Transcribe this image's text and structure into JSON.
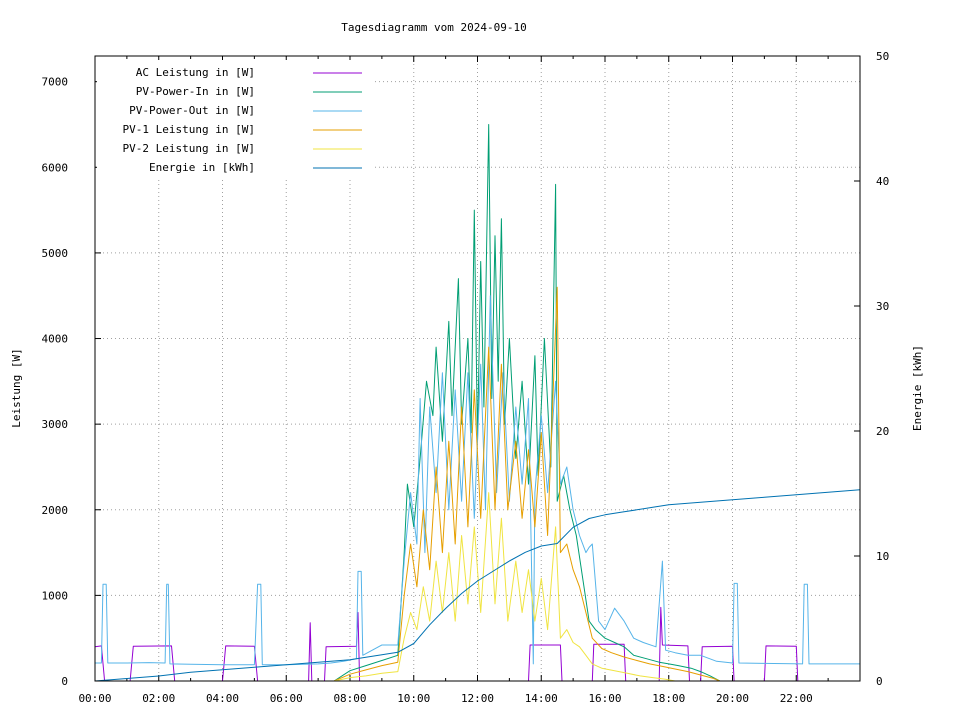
{
  "chart_data": {
    "type": "line",
    "title": "Tagesdiagramm vom 2024-09-10",
    "ylabel": "Leistung [W]",
    "y2label": "Energie [kWh]",
    "xlim": [
      "00:00",
      "24:00"
    ],
    "ylim": [
      0,
      7300
    ],
    "y2lim": [
      0,
      50
    ],
    "x_ticks": [
      "00:00",
      "02:00",
      "04:00",
      "06:00",
      "08:00",
      "10:00",
      "12:00",
      "14:00",
      "16:00",
      "18:00",
      "20:00",
      "22:00"
    ],
    "y_ticks": [
      0,
      1000,
      2000,
      3000,
      4000,
      5000,
      6000,
      7000
    ],
    "y2_ticks": [
      0,
      10,
      20,
      30,
      40,
      50
    ],
    "grid": true,
    "legend_position": "top-left",
    "series": [
      {
        "name": "AC Leistung in [W]",
        "color": "#9400d3",
        "axis": "left",
        "points": [
          [
            0.0,
            400
          ],
          [
            0.2,
            410
          ],
          [
            0.3,
            0
          ],
          [
            1.1,
            0
          ],
          [
            1.2,
            405
          ],
          [
            2.4,
            410
          ],
          [
            2.5,
            0
          ],
          [
            4.0,
            0
          ],
          [
            4.1,
            410
          ],
          [
            5.0,
            405
          ],
          [
            5.1,
            0
          ],
          [
            6.7,
            0
          ],
          [
            6.75,
            680
          ],
          [
            6.8,
            0
          ],
          [
            7.2,
            0
          ],
          [
            7.25,
            400
          ],
          [
            8.2,
            405
          ],
          [
            8.25,
            800
          ],
          [
            8.3,
            0
          ],
          [
            13.6,
            0
          ],
          [
            13.65,
            420
          ],
          [
            14.6,
            420
          ],
          [
            14.65,
            0
          ],
          [
            15.6,
            0
          ],
          [
            15.65,
            430
          ],
          [
            16.6,
            430
          ],
          [
            16.65,
            0
          ],
          [
            17.7,
            0
          ],
          [
            17.75,
            860
          ],
          [
            17.8,
            420
          ],
          [
            18.6,
            410
          ],
          [
            18.65,
            0
          ],
          [
            19.0,
            0
          ],
          [
            19.05,
            400
          ],
          [
            20.0,
            405
          ],
          [
            20.05,
            0
          ],
          [
            21.0,
            0
          ],
          [
            21.05,
            410
          ],
          [
            22.0,
            405
          ],
          [
            22.05,
            0
          ],
          [
            24.0,
            0
          ]
        ]
      },
      {
        "name": "PV-Power-In in [W]",
        "color": "#009e73",
        "axis": "left",
        "points": [
          [
            7.5,
            0
          ],
          [
            8.0,
            120
          ],
          [
            8.5,
            180
          ],
          [
            9.0,
            240
          ],
          [
            9.5,
            300
          ],
          [
            9.7,
            1500
          ],
          [
            9.8,
            2300
          ],
          [
            10.0,
            1800
          ],
          [
            10.2,
            2600
          ],
          [
            10.4,
            3500
          ],
          [
            10.6,
            3100
          ],
          [
            10.7,
            3900
          ],
          [
            10.9,
            2800
          ],
          [
            11.1,
            4200
          ],
          [
            11.2,
            3100
          ],
          [
            11.4,
            4700
          ],
          [
            11.5,
            3000
          ],
          [
            11.7,
            4000
          ],
          [
            11.8,
            2900
          ],
          [
            11.9,
            5500
          ],
          [
            12.0,
            2800
          ],
          [
            12.1,
            4900
          ],
          [
            12.2,
            3200
          ],
          [
            12.35,
            6500
          ],
          [
            12.45,
            3300
          ],
          [
            12.55,
            5200
          ],
          [
            12.65,
            3500
          ],
          [
            12.75,
            5400
          ],
          [
            12.85,
            3000
          ],
          [
            13.0,
            4000
          ],
          [
            13.2,
            2600
          ],
          [
            13.4,
            3500
          ],
          [
            13.6,
            2300
          ],
          [
            13.8,
            3800
          ],
          [
            13.9,
            2400
          ],
          [
            14.1,
            4000
          ],
          [
            14.3,
            2500
          ],
          [
            14.45,
            5800
          ],
          [
            14.5,
            2100
          ],
          [
            14.7,
            2400
          ],
          [
            14.9,
            2000
          ],
          [
            15.1,
            1700
          ],
          [
            15.3,
            1200
          ],
          [
            15.5,
            700
          ],
          [
            15.7,
            600
          ],
          [
            16.0,
            500
          ],
          [
            16.3,
            450
          ],
          [
            16.6,
            400
          ],
          [
            16.9,
            300
          ],
          [
            17.3,
            260
          ],
          [
            17.7,
            220
          ],
          [
            18.0,
            200
          ],
          [
            18.3,
            180
          ],
          [
            18.7,
            150
          ],
          [
            19.0,
            110
          ],
          [
            19.3,
            60
          ],
          [
            19.6,
            0
          ]
        ]
      },
      {
        "name": "PV-Power-Out in [W]",
        "color": "#56b4e9",
        "axis": "left",
        "points": [
          [
            0.0,
            210
          ],
          [
            0.2,
            210
          ],
          [
            0.25,
            1130
          ],
          [
            0.35,
            1130
          ],
          [
            0.4,
            210
          ],
          [
            1.0,
            210
          ],
          [
            1.7,
            215
          ],
          [
            2.2,
            210
          ],
          [
            2.25,
            1130
          ],
          [
            2.3,
            1130
          ],
          [
            2.35,
            200
          ],
          [
            3.0,
            195
          ],
          [
            4.0,
            190
          ],
          [
            5.0,
            190
          ],
          [
            5.1,
            1130
          ],
          [
            5.2,
            1130
          ],
          [
            5.25,
            190
          ],
          [
            6.0,
            190
          ],
          [
            7.0,
            200
          ],
          [
            7.4,
            210
          ],
          [
            7.8,
            230
          ],
          [
            8.2,
            260
          ],
          [
            8.25,
            1280
          ],
          [
            8.35,
            1280
          ],
          [
            8.4,
            300
          ],
          [
            9.0,
            420
          ],
          [
            9.5,
            420
          ],
          [
            9.7,
            1400
          ],
          [
            9.9,
            2200
          ],
          [
            10.1,
            1600
          ],
          [
            10.2,
            3300
          ],
          [
            10.35,
            1500
          ],
          [
            10.5,
            3200
          ],
          [
            10.7,
            2200
          ],
          [
            10.9,
            3600
          ],
          [
            11.1,
            2000
          ],
          [
            11.3,
            3400
          ],
          [
            11.5,
            2100
          ],
          [
            11.7,
            3600
          ],
          [
            11.9,
            1900
          ],
          [
            12.1,
            3700
          ],
          [
            12.25,
            2000
          ],
          [
            12.4,
            4500
          ],
          [
            12.6,
            2200
          ],
          [
            12.8,
            3600
          ],
          [
            13.0,
            2100
          ],
          [
            13.2,
            3200
          ],
          [
            13.4,
            2300
          ],
          [
            13.6,
            3300
          ],
          [
            13.75,
            200
          ],
          [
            13.8,
            2200
          ],
          [
            14.0,
            3100
          ],
          [
            14.2,
            2200
          ],
          [
            14.45,
            3500
          ],
          [
            14.6,
            2300
          ],
          [
            14.8,
            2500
          ],
          [
            15.0,
            2000
          ],
          [
            15.2,
            1700
          ],
          [
            15.4,
            1500
          ],
          [
            15.5,
            1560
          ],
          [
            15.6,
            1600
          ],
          [
            15.8,
            700
          ],
          [
            16.0,
            600
          ],
          [
            16.3,
            850
          ],
          [
            16.6,
            700
          ],
          [
            16.9,
            500
          ],
          [
            17.2,
            450
          ],
          [
            17.6,
            400
          ],
          [
            17.8,
            1400
          ],
          [
            17.9,
            360
          ],
          [
            18.2,
            330
          ],
          [
            18.6,
            300
          ],
          [
            19.0,
            300
          ],
          [
            19.5,
            230
          ],
          [
            20.0,
            210
          ],
          [
            20.05,
            1140
          ],
          [
            20.15,
            1140
          ],
          [
            20.2,
            210
          ],
          [
            21.0,
            205
          ],
          [
            22.2,
            200
          ],
          [
            22.25,
            1130
          ],
          [
            22.35,
            1130
          ],
          [
            22.4,
            200
          ],
          [
            23.0,
            200
          ],
          [
            24.0,
            200
          ]
        ]
      },
      {
        "name": "PV-1 Leistung in [W]",
        "color": "#e69f00",
        "axis": "left",
        "points": [
          [
            7.5,
            0
          ],
          [
            8.0,
            80
          ],
          [
            8.5,
            130
          ],
          [
            9.0,
            180
          ],
          [
            9.5,
            220
          ],
          [
            9.7,
            1000
          ],
          [
            9.9,
            1600
          ],
          [
            10.1,
            1100
          ],
          [
            10.3,
            2000
          ],
          [
            10.5,
            1300
          ],
          [
            10.7,
            2500
          ],
          [
            10.9,
            1500
          ],
          [
            11.1,
            2800
          ],
          [
            11.3,
            1600
          ],
          [
            11.5,
            3200
          ],
          [
            11.7,
            1800
          ],
          [
            11.9,
            3400
          ],
          [
            12.1,
            1900
          ],
          [
            12.35,
            3900
          ],
          [
            12.55,
            2000
          ],
          [
            12.75,
            3700
          ],
          [
            12.95,
            2000
          ],
          [
            13.2,
            2800
          ],
          [
            13.4,
            1900
          ],
          [
            13.6,
            2700
          ],
          [
            13.8,
            1800
          ],
          [
            14.0,
            2900
          ],
          [
            14.2,
            1700
          ],
          [
            14.5,
            4600
          ],
          [
            14.6,
            1500
          ],
          [
            14.8,
            1600
          ],
          [
            15.0,
            1300
          ],
          [
            15.2,
            1100
          ],
          [
            15.4,
            800
          ],
          [
            15.6,
            500
          ],
          [
            15.9,
            380
          ],
          [
            16.2,
            330
          ],
          [
            16.6,
            280
          ],
          [
            17.0,
            240
          ],
          [
            17.4,
            200
          ],
          [
            17.8,
            170
          ],
          [
            18.2,
            140
          ],
          [
            18.6,
            110
          ],
          [
            19.0,
            70
          ],
          [
            19.4,
            30
          ],
          [
            19.6,
            0
          ]
        ]
      },
      {
        "name": "PV-2 Leistung in [W]",
        "color": "#f0e442",
        "axis": "left",
        "points": [
          [
            7.5,
            0
          ],
          [
            8.0,
            40
          ],
          [
            8.5,
            60
          ],
          [
            9.0,
            90
          ],
          [
            9.5,
            110
          ],
          [
            9.7,
            500
          ],
          [
            9.9,
            800
          ],
          [
            10.1,
            600
          ],
          [
            10.3,
            1100
          ],
          [
            10.5,
            700
          ],
          [
            10.7,
            1400
          ],
          [
            10.9,
            800
          ],
          [
            11.1,
            1500
          ],
          [
            11.3,
            700
          ],
          [
            11.5,
            1700
          ],
          [
            11.7,
            900
          ],
          [
            11.9,
            1800
          ],
          [
            12.1,
            800
          ],
          [
            12.35,
            2200
          ],
          [
            12.55,
            900
          ],
          [
            12.75,
            1900
          ],
          [
            12.95,
            700
          ],
          [
            13.2,
            1400
          ],
          [
            13.4,
            800
          ],
          [
            13.6,
            1300
          ],
          [
            13.8,
            700
          ],
          [
            14.0,
            1200
          ],
          [
            14.2,
            600
          ],
          [
            14.45,
            1800
          ],
          [
            14.6,
            500
          ],
          [
            14.8,
            600
          ],
          [
            15.0,
            450
          ],
          [
            15.2,
            400
          ],
          [
            15.4,
            300
          ],
          [
            15.6,
            200
          ],
          [
            15.9,
            150
          ],
          [
            16.3,
            120
          ],
          [
            16.7,
            90
          ],
          [
            17.1,
            60
          ],
          [
            17.5,
            40
          ],
          [
            17.9,
            20
          ],
          [
            18.2,
            0
          ]
        ]
      },
      {
        "name": "Energie in [kWh]",
        "color": "#0072b2",
        "axis": "right",
        "points": [
          [
            0.0,
            0.0
          ],
          [
            1.0,
            0.2
          ],
          [
            2.0,
            0.4
          ],
          [
            3.0,
            0.7
          ],
          [
            4.0,
            0.9
          ],
          [
            5.0,
            1.1
          ],
          [
            6.0,
            1.3
          ],
          [
            7.0,
            1.5
          ],
          [
            7.5,
            1.6
          ],
          [
            8.0,
            1.7
          ],
          [
            8.5,
            1.9
          ],
          [
            9.0,
            2.1
          ],
          [
            9.5,
            2.3
          ],
          [
            10.0,
            3.0
          ],
          [
            10.5,
            4.5
          ],
          [
            11.0,
            5.8
          ],
          [
            11.5,
            7.0
          ],
          [
            12.0,
            8.0
          ],
          [
            12.5,
            8.8
          ],
          [
            13.0,
            9.6
          ],
          [
            13.5,
            10.3
          ],
          [
            14.0,
            10.8
          ],
          [
            14.5,
            11.0
          ],
          [
            15.0,
            12.3
          ],
          [
            15.5,
            13.0
          ],
          [
            16.0,
            13.3
          ],
          [
            16.5,
            13.5
          ],
          [
            17.0,
            13.7
          ],
          [
            17.5,
            13.9
          ],
          [
            18.0,
            14.1
          ],
          [
            18.5,
            14.2
          ],
          [
            19.0,
            14.3
          ],
          [
            20.0,
            14.5
          ],
          [
            21.0,
            14.7
          ],
          [
            22.0,
            14.9
          ],
          [
            23.0,
            15.1
          ],
          [
            24.0,
            15.3
          ]
        ]
      }
    ]
  }
}
